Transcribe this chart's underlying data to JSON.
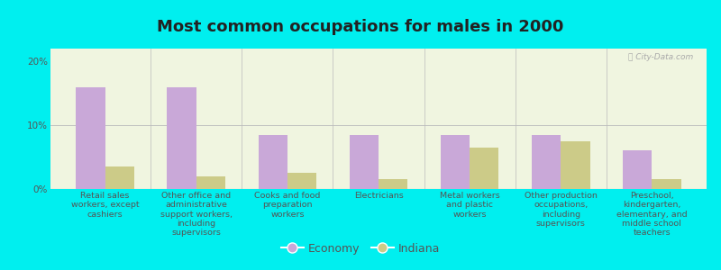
{
  "title": "Most common occupations for males in 2000",
  "categories": [
    "Retail sales\nworkers, except\ncashiers",
    "Other office and\nadministrative\nsupport workers,\nincluding\nsupervisors",
    "Cooks and food\npreparation\nworkers",
    "Electricians",
    "Metal workers\nand plastic\nworkers",
    "Other production\noccupations,\nincluding\nsupervisors",
    "Preschool,\nkindergarten,\nelementary, and\nmiddle school\nteachers"
  ],
  "economy_values": [
    16.0,
    16.0,
    8.5,
    8.5,
    8.5,
    8.5,
    6.0
  ],
  "indiana_values": [
    3.5,
    2.0,
    2.5,
    1.5,
    6.5,
    7.5,
    1.5
  ],
  "economy_color": "#c9a8d8",
  "indiana_color": "#cccb88",
  "background_top": "#f0f5e0",
  "background_bottom": "#e0f0d0",
  "outer_background": "#00efef",
  "ylim": [
    0,
    22
  ],
  "yticks": [
    0,
    10,
    20
  ],
  "ytick_labels": [
    "0%",
    "10%",
    "20%"
  ],
  "legend_economy": "Economy",
  "legend_indiana": "Indiana",
  "title_fontsize": 13,
  "tick_fontsize": 7.5,
  "label_fontsize": 6.8,
  "tick_color": "#555555",
  "label_color": "#555555"
}
